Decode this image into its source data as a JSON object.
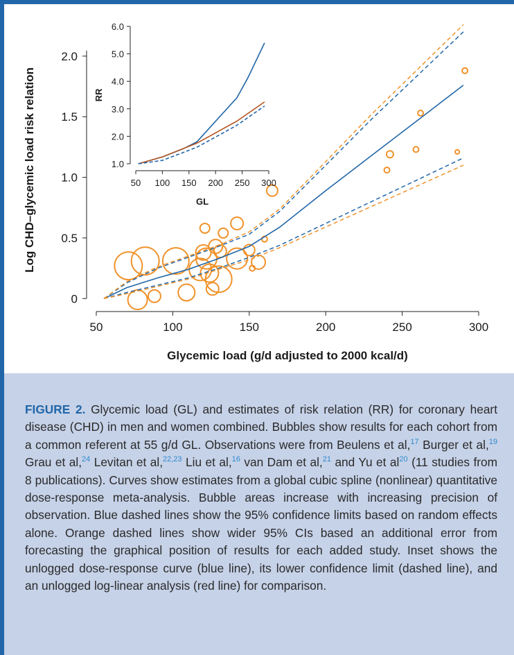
{
  "chart_data": [
    {
      "type": "scatter",
      "title": "",
      "xlabel": "Glycemic load (g/d adjusted to 2000 kcal/d)",
      "ylabel": "Log CHD–glycemic load risk relation",
      "xlim": [
        50,
        300
      ],
      "ylim": [
        -0.05,
        2.4
      ],
      "x_ticks": [
        "50",
        "100",
        "150",
        "200",
        "250",
        "300"
      ],
      "y_ticks": [
        "0",
        "0.5",
        "1.0",
        "1.5",
        "2.0"
      ],
      "grid": false,
      "colors": {
        "bubble": "#f0922a",
        "curve": "#2166a8",
        "ci_blue": "#2166a8",
        "ci_orange": "#f0922a"
      },
      "bubbles": [
        {
          "x": 71,
          "y": 0.27,
          "precision": 20
        },
        {
          "x": 77,
          "y": -0.01,
          "precision": 14
        },
        {
          "x": 82,
          "y": 0.31,
          "precision": 20
        },
        {
          "x": 88,
          "y": 0.02,
          "precision": 9
        },
        {
          "x": 102,
          "y": 0.31,
          "precision": 19
        },
        {
          "x": 109,
          "y": 0.05,
          "precision": 12
        },
        {
          "x": 118,
          "y": 0.24,
          "precision": 16
        },
        {
          "x": 120,
          "y": 0.38,
          "precision": 11
        },
        {
          "x": 121,
          "y": 0.58,
          "precision": 7
        },
        {
          "x": 122,
          "y": 0.33,
          "precision": 15
        },
        {
          "x": 124,
          "y": 0.21,
          "precision": 13
        },
        {
          "x": 126,
          "y": 0.08,
          "precision": 9
        },
        {
          "x": 128,
          "y": 0.43,
          "precision": 10
        },
        {
          "x": 130,
          "y": 0.16,
          "precision": 19
        },
        {
          "x": 131,
          "y": 0.39,
          "precision": 9
        },
        {
          "x": 133,
          "y": 0.54,
          "precision": 7
        },
        {
          "x": 142,
          "y": 0.62,
          "precision": 9
        },
        {
          "x": 142,
          "y": 0.33,
          "precision": 15
        },
        {
          "x": 150,
          "y": 0.4,
          "precision": 8
        },
        {
          "x": 152,
          "y": 0.25,
          "precision": 4
        },
        {
          "x": 156,
          "y": 0.3,
          "precision": 10
        },
        {
          "x": 160,
          "y": 0.49,
          "precision": 4
        },
        {
          "x": 165,
          "y": 0.89,
          "precision": 8
        },
        {
          "x": 240,
          "y": 1.06,
          "precision": 4
        },
        {
          "x": 242,
          "y": 1.19,
          "precision": 5
        },
        {
          "x": 259,
          "y": 1.23,
          "precision": 4
        },
        {
          "x": 262,
          "y": 1.53,
          "precision": 4
        },
        {
          "x": 286,
          "y": 1.21,
          "precision": 3
        },
        {
          "x": 291,
          "y": 1.88,
          "precision": 4
        }
      ],
      "series": [
        {
          "role": "curve",
          "x": [
            55,
            70,
            90,
            110,
            130,
            150,
            170,
            200,
            230,
            260,
            290
          ],
          "values": [
            0,
            0.09,
            0.17,
            0.24,
            0.33,
            0.43,
            0.59,
            0.89,
            1.18,
            1.47,
            1.76
          ]
        },
        {
          "role": "ci_blue_upper",
          "x": [
            55,
            70,
            90,
            110,
            130,
            150,
            170,
            200,
            230,
            260,
            290
          ],
          "values": [
            0,
            0.13,
            0.25,
            0.34,
            0.43,
            0.53,
            0.72,
            1.1,
            1.48,
            1.84,
            2.2
          ]
        },
        {
          "role": "ci_blue_lower",
          "x": [
            55,
            70,
            90,
            110,
            130,
            150,
            170,
            200,
            230,
            260,
            290
          ],
          "values": [
            0,
            0.05,
            0.11,
            0.17,
            0.25,
            0.34,
            0.44,
            0.62,
            0.8,
            0.98,
            1.16
          ]
        },
        {
          "role": "ci_orange_upper",
          "x": [
            55,
            70,
            90,
            110,
            130,
            150,
            170,
            200,
            230,
            260,
            290
          ],
          "values": [
            0,
            0.14,
            0.26,
            0.35,
            0.44,
            0.55,
            0.74,
            1.13,
            1.52,
            1.89,
            2.26
          ]
        },
        {
          "role": "ci_orange_lower",
          "x": [
            55,
            70,
            90,
            110,
            130,
            150,
            170,
            200,
            230,
            260,
            290
          ],
          "values": [
            0,
            0.04,
            0.1,
            0.16,
            0.24,
            0.32,
            0.42,
            0.59,
            0.76,
            0.93,
            1.1
          ]
        }
      ]
    },
    {
      "type": "line",
      "title": "",
      "xlabel": "GL",
      "ylabel": "RR",
      "xlim": [
        50,
        300
      ],
      "ylim": [
        1.0,
        6.0
      ],
      "x_ticks": [
        "50",
        "100",
        "150",
        "200",
        "250",
        "300"
      ],
      "y_ticks": [
        "1.0",
        "2.0",
        "3.0",
        "4.0",
        "5.0",
        "6.0"
      ],
      "grid": false,
      "series": [
        {
          "role": "dose-response curve",
          "color": "#2166a8",
          "style": "solid",
          "x": [
            55,
            100,
            140,
            165,
            240,
            260,
            292
          ],
          "values": [
            1.0,
            1.25,
            1.55,
            1.8,
            3.4,
            4.1,
            5.4
          ]
        },
        {
          "role": "log-linear",
          "color": "#b5521c",
          "style": "solid",
          "x": [
            55,
            100,
            165,
            240,
            292
          ],
          "values": [
            1.0,
            1.25,
            1.75,
            2.55,
            3.25
          ]
        },
        {
          "role": "lower confidence limit",
          "color": "#2166a8",
          "style": "dashed",
          "x": [
            55,
            100,
            165,
            240,
            292
          ],
          "values": [
            1.0,
            1.12,
            1.6,
            2.4,
            3.1
          ]
        }
      ]
    }
  ],
  "caption": {
    "label": "FIGURE 2.",
    "text": " Glycemic load (GL) and estimates of risk relation (RR) for coronary heart disease (CHD) in men and women combined. Bubbles show results for each cohort from a common referent at 55 g/d GL. Observations were from Beulens et al,17 Burger et al,19 Grau et al,24 Levitan et al,22,23 Liu et al,16 van Dam et al,21 and Yu et al20 (11 studies from 8 publications). Curves show estimates from a global cubic spline (nonlinear) quantitative dose-response meta-analysis. Bubble areas increase with increasing precision of observation. Blue dashed lines show the 95% confidence limits based on random effects alone. Orange dashed lines show wider 95% CIs based an additional error from forecasting the graphical position of results for each added study. Inset shows the unlogged dose-response curve (blue line), its lower confidence limit (dashed line), and an unlogged log-linear analysis (red line) for comparison."
  }
}
